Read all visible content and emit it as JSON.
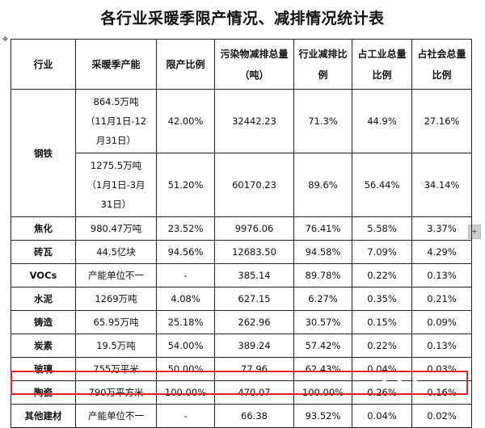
{
  "title": "各行业采暖季限产情况、减排情况统计表",
  "columns": [
    "行业",
    "采暖季产能",
    "限产比例",
    "污染物减排总量（吨）",
    "行业减排比例",
    "占工业总量比例",
    "占社会总量比例"
  ],
  "steel": {
    "industry": "钢铁",
    "rows": [
      {
        "capacity_lines": [
          "864.5万吨",
          "（11月1日-12",
          "月31日）"
        ],
        "limit": "42.00%",
        "reduction": "32442.23",
        "industry_ratio": "71.3%",
        "industrial_ratio": "44.9%",
        "social_ratio": "27.16%"
      },
      {
        "capacity_lines": [
          "1275.5万吨",
          "（1月1日-3月",
          "31日）"
        ],
        "limit": "51.20%",
        "reduction": "60170.23",
        "industry_ratio": "89.6%",
        "industrial_ratio": "56.44%",
        "social_ratio": "34.14%"
      }
    ]
  },
  "rows": [
    {
      "industry": "焦化",
      "capacity": "980.47万吨",
      "limit": "23.52%",
      "reduction": "9976.06",
      "industry_ratio": "76.41%",
      "industrial_ratio": "5.58%",
      "social_ratio": "3.37%"
    },
    {
      "industry": "砖瓦",
      "capacity": "44.5亿块",
      "limit": "94.56%",
      "reduction": "12683.50",
      "industry_ratio": "94.58%",
      "industrial_ratio": "7.09%",
      "social_ratio": "4.29%"
    },
    {
      "industry": "VOCs",
      "capacity": "产能单位不一",
      "limit": "-",
      "reduction": "385.14",
      "industry_ratio": "89.78%",
      "industrial_ratio": "0.22%",
      "social_ratio": "0.13%"
    },
    {
      "industry": "水泥",
      "capacity": "1269万吨",
      "limit": "4.08%",
      "reduction": "627.15",
      "industry_ratio": "6.27%",
      "industrial_ratio": "0.35%",
      "social_ratio": "0.21%"
    },
    {
      "industry": "铸造",
      "capacity": "65.95万吨",
      "limit": "25.18%",
      "reduction": "262.96",
      "industry_ratio": "30.57%",
      "industrial_ratio": "0.15%",
      "social_ratio": "0.09%"
    },
    {
      "industry": "炭素",
      "capacity": "19.5万吨",
      "limit": "54.00%",
      "reduction": "389.24",
      "industry_ratio": "57.42%",
      "industrial_ratio": "0.22%",
      "social_ratio": "0.13%"
    },
    {
      "industry": "玻璃",
      "capacity": "755万平米",
      "limit": "50.00%",
      "reduction": "77.96",
      "industry_ratio": "62.43%",
      "industrial_ratio": "0.04%",
      "social_ratio": "0.03%"
    },
    {
      "industry": "陶瓷",
      "capacity": "790万平方米",
      "limit": "100.00%",
      "reduction": "470.07",
      "industry_ratio": "100.00%",
      "industrial_ratio": "0.26%",
      "social_ratio": "0.16%"
    },
    {
      "industry": "其他建材",
      "capacity": "产能单位不一",
      "limit": "-",
      "reduction": "66.38",
      "industry_ratio": "93.52%",
      "industrial_ratio": "0.04%",
      "social_ratio": "0.02%"
    }
  ],
  "highlight_color": "#e2222b",
  "icons": {
    "move_handle": "move-icon",
    "resize_handle": "plus-icon"
  }
}
